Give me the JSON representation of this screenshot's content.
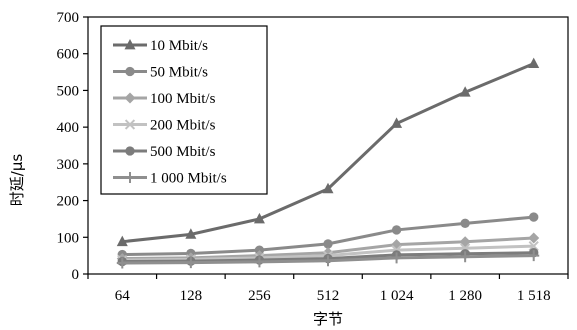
{
  "chart_data": {
    "type": "line",
    "title": "",
    "xlabel": "字节",
    "ylabel": "时延/μs",
    "categories": [
      "64",
      "128",
      "256",
      "512",
      "1 024",
      "1 280",
      "1 518"
    ],
    "ylim": [
      0,
      700
    ],
    "yticks": [
      0,
      100,
      200,
      300,
      400,
      500,
      600,
      700
    ],
    "grid": false,
    "legend": "top-left",
    "series": [
      {
        "name": "10 Mbit/s",
        "values": [
          88,
          108,
          150,
          232,
          410,
          495,
          573
        ],
        "color": "#6b6b6b",
        "marker": "triangle"
      },
      {
        "name": "50 Mbit/s",
        "values": [
          53,
          56,
          65,
          82,
          120,
          138,
          155
        ],
        "color": "#8a8a8a",
        "marker": "circle"
      },
      {
        "name": "100 Mbit/s",
        "values": [
          42,
          44,
          50,
          58,
          80,
          88,
          98
        ],
        "color": "#a5a5a5",
        "marker": "diamond"
      },
      {
        "name": "200 Mbit/s",
        "values": [
          38,
          40,
          44,
          50,
          65,
          70,
          76
        ],
        "color": "#c2c2c2",
        "marker": "x"
      },
      {
        "name": "500 Mbit/s",
        "values": [
          34,
          35,
          38,
          42,
          52,
          55,
          58
        ],
        "color": "#7c7c7c",
        "marker": "circle"
      },
      {
        "name": "1 000 Mbit/s",
        "values": [
          30,
          31,
          33,
          36,
          44,
          47,
          50
        ],
        "color": "#8f8f8f",
        "marker": "plus"
      }
    ]
  }
}
